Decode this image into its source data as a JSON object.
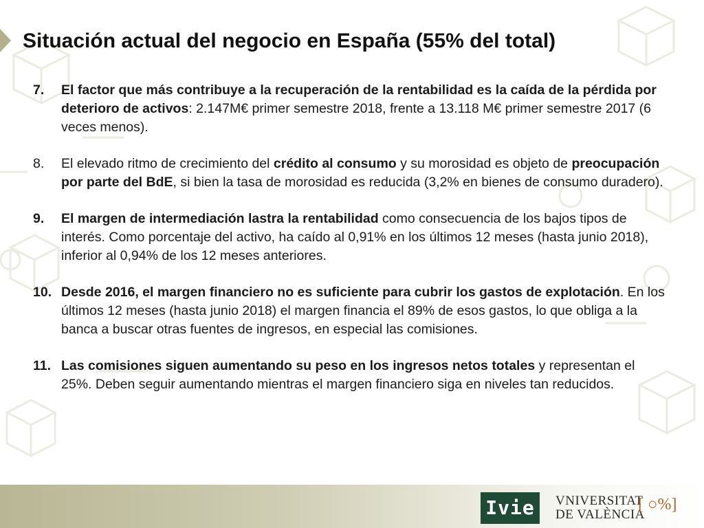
{
  "title": "Situación actual del negocio en España (55% del total)",
  "items": [
    {
      "number": "7.",
      "number_bold": true,
      "segments": [
        {
          "text": "El factor que más contribuye a la recuperación de la rentabilidad es la caída de la pérdida por deterioro de activos",
          "bold": true
        },
        {
          "text": ": 2.147M€ primer semestre 2018, frente a 13.118 M€ primer semestre 2017 (6 veces menos).",
          "bold": false
        }
      ]
    },
    {
      "number": "8.",
      "number_bold": false,
      "segments": [
        {
          "text": "El elevado ritmo de crecimiento del ",
          "bold": false
        },
        {
          "text": "crédito al consumo",
          "bold": true
        },
        {
          "text": " y su morosidad es objeto de ",
          "bold": false
        },
        {
          "text": "preocupación por parte del BdE",
          "bold": true
        },
        {
          "text": ", si bien la tasa de morosidad es reducida (3,2% en bienes de consumo duradero).",
          "bold": false
        }
      ]
    },
    {
      "number": "9.",
      "number_bold": true,
      "segments": [
        {
          "text": "El margen de intermediación lastra la rentabilidad",
          "bold": true
        },
        {
          "text": " como consecuencia de los bajos tipos de interés. Como porcentaje del activo, ha caído al 0,91% en los últimos 12 meses (hasta junio 2018), inferior al 0,94% de los 12 meses anteriores.",
          "bold": false
        }
      ]
    },
    {
      "number": "10.",
      "number_bold": true,
      "segments": [
        {
          "text": "Desde 2016, el margen financiero no es suficiente para cubrir los gastos de explotación",
          "bold": true
        },
        {
          "text": ". En los últimos 12 meses (hasta junio 2018) el margen financia el 89% de esos gastos, lo que obliga a la banca a buscar otras fuentes de ingresos, en especial las comisiones.",
          "bold": false
        }
      ]
    },
    {
      "number": "11.",
      "number_bold": true,
      "segments": [
        {
          "text": "Las comisiones siguen aumentando su peso en los ingresos netos totales",
          "bold": true
        },
        {
          "text": " y representan el 25%. Deben seguir aumentando mientras el margen financiero siga en niveles tan reducidos.",
          "bold": false
        }
      ]
    }
  ],
  "footer": {
    "ivie_logo": "Ivie",
    "university_line1": "VNIVERSITAT",
    "university_line2": "DE VALÈNCIA",
    "university_seal": "[ ○%]"
  },
  "colors": {
    "title_marker": "#b3b18a",
    "footer_band": "#b8b694",
    "ivie_green": "#1f4a36",
    "seal_orange": "#b5602a"
  },
  "icons": [
    "background-pattern-icon",
    "ivie-logo",
    "universitat-valencia-seal-icon"
  ]
}
